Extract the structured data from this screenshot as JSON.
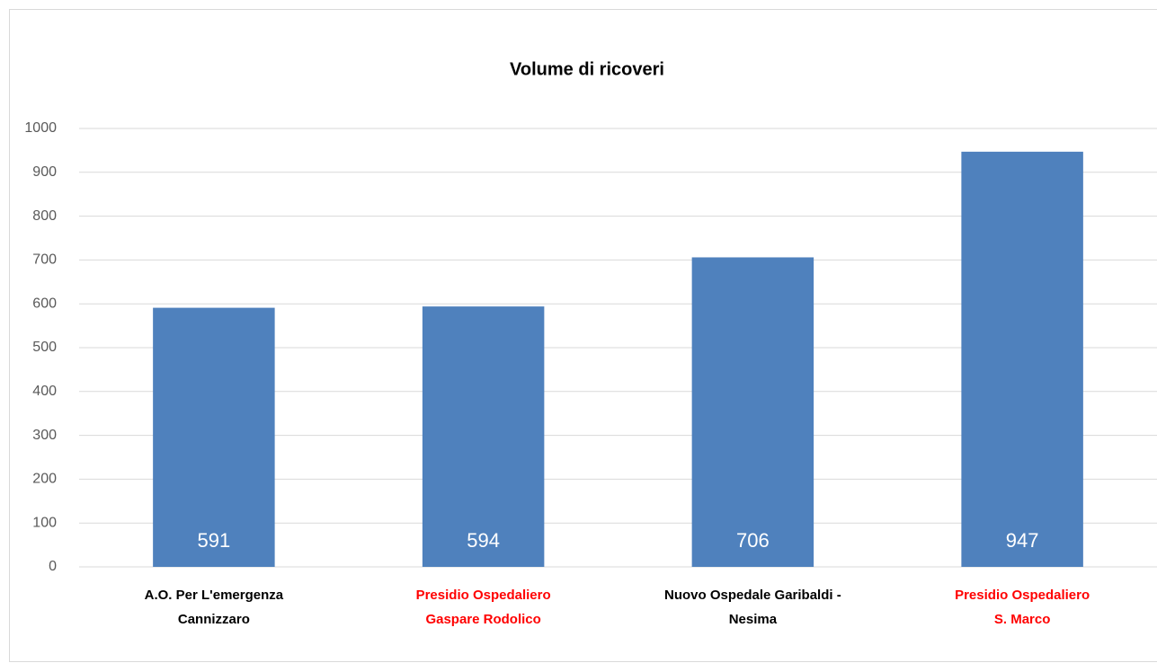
{
  "chart_data": {
    "type": "bar",
    "title": "Volume di ricoveri",
    "categories": [
      [
        "A.O. Per L'emergenza",
        "Cannizzaro"
      ],
      [
        "Presidio Ospedaliero",
        "Gaspare Rodolico"
      ],
      [
        "Nuovo Ospedale Garibaldi -",
        "Nesima"
      ],
      [
        "Presidio Ospedaliero",
        "S. Marco"
      ]
    ],
    "category_colors": [
      "#000000",
      "#ff0000",
      "#000000",
      "#ff0000"
    ],
    "values": [
      591,
      594,
      706,
      947
    ],
    "color": "#4f81bd",
    "ylim": [
      0,
      1000
    ],
    "yticks": [
      0,
      100,
      200,
      300,
      400,
      500,
      600,
      700,
      800,
      900,
      1000
    ],
    "grid": true
  }
}
